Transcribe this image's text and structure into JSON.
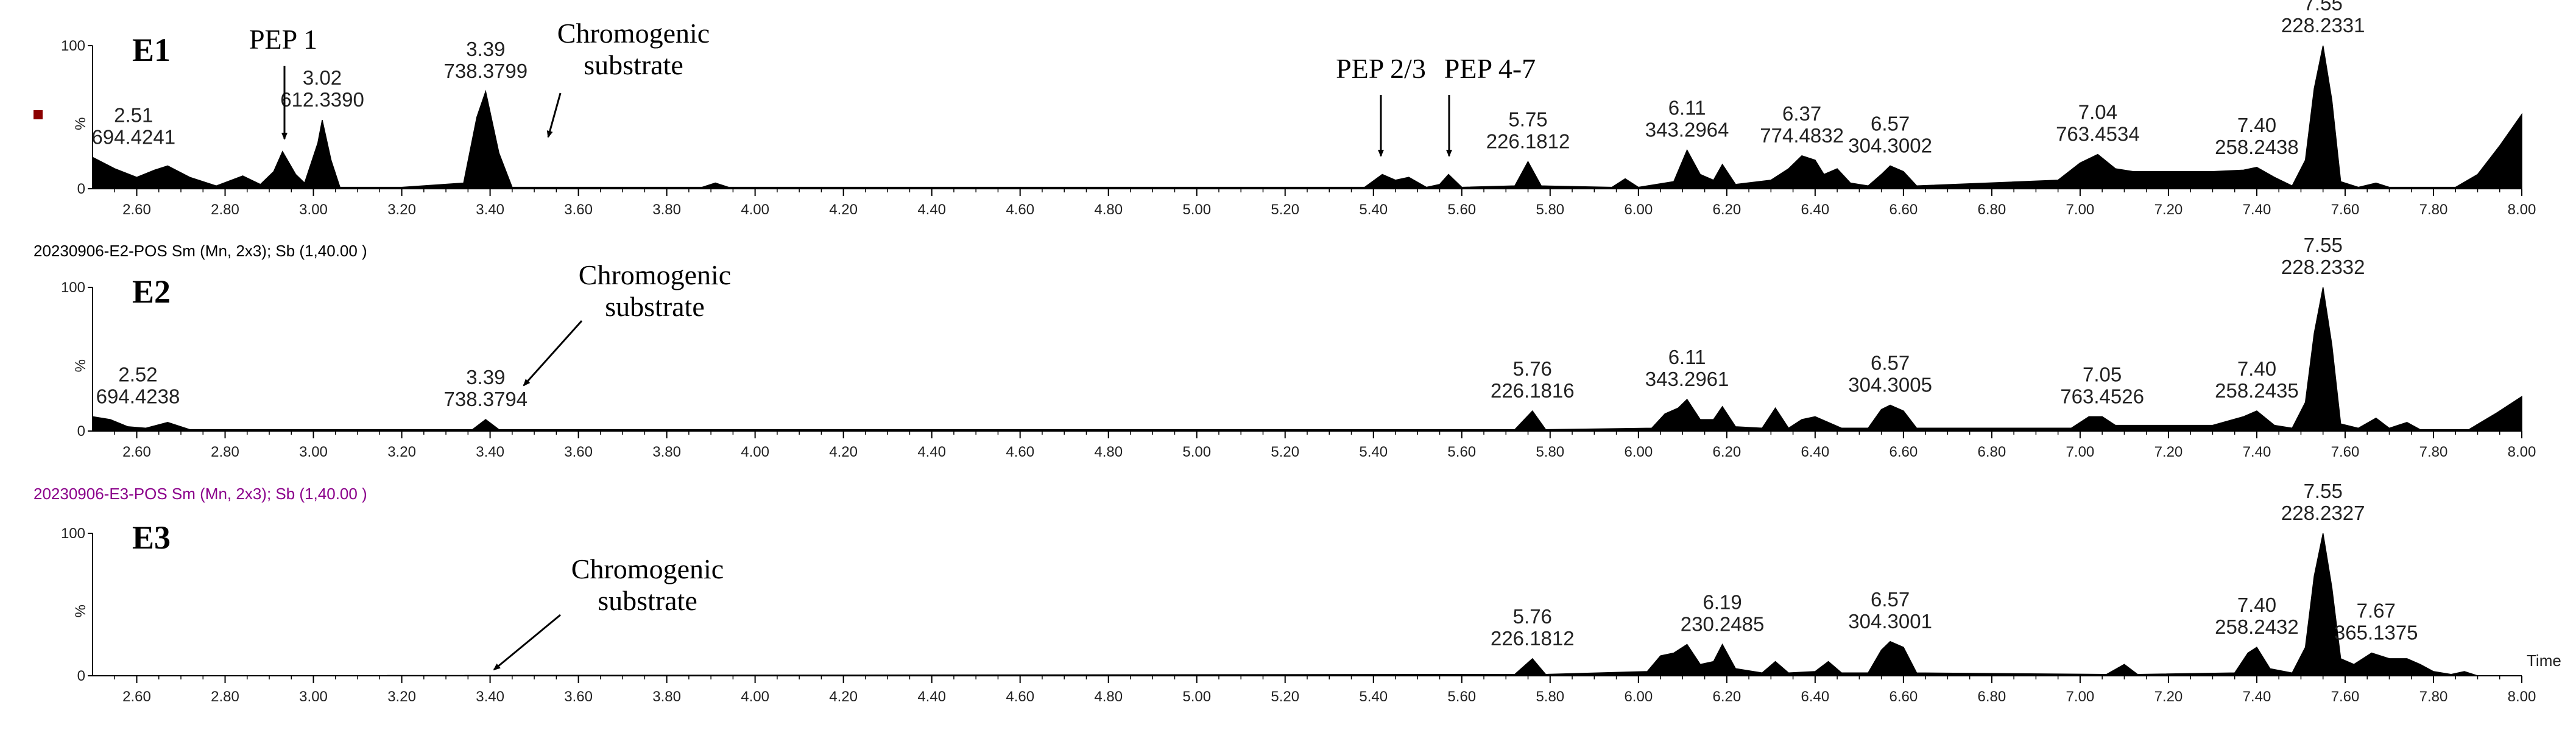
{
  "chart_data": [
    {
      "type": "area",
      "title": "E1",
      "header": "",
      "header_color": "#000000",
      "xlim": [
        2.5,
        8.0
      ],
      "ylim": [
        0,
        100
      ],
      "y_ticks": [
        "100",
        "%",
        "0"
      ],
      "x_ticks": [
        "2.60",
        "2.80",
        "3.00",
        "3.20",
        "3.40",
        "3.60",
        "3.80",
        "4.00",
        "4.20",
        "4.40",
        "4.60",
        "4.80",
        "5.00",
        "5.20",
        "5.40",
        "5.60",
        "5.80",
        "6.00",
        "6.20",
        "6.40",
        "6.60",
        "6.80",
        "7.00",
        "7.20",
        "7.40",
        "7.60",
        "7.80",
        "8.00"
      ],
      "x_axis_label": "",
      "trace": [
        [
          2.5,
          22
        ],
        [
          2.55,
          14
        ],
        [
          2.6,
          8
        ],
        [
          2.64,
          13
        ],
        [
          2.67,
          16
        ],
        [
          2.72,
          8
        ],
        [
          2.78,
          2
        ],
        [
          2.84,
          9
        ],
        [
          2.88,
          3
        ],
        [
          2.91,
          12
        ],
        [
          2.93,
          26
        ],
        [
          2.96,
          10
        ],
        [
          2.98,
          4
        ],
        [
          3.01,
          32
        ],
        [
          3.02,
          48
        ],
        [
          3.04,
          20
        ],
        [
          3.06,
          1
        ],
        [
          3.2,
          1
        ],
        [
          3.34,
          4
        ],
        [
          3.37,
          50
        ],
        [
          3.39,
          68
        ],
        [
          3.42,
          25
        ],
        [
          3.45,
          1
        ],
        [
          3.88,
          1
        ],
        [
          3.91,
          4
        ],
        [
          3.94,
          1
        ],
        [
          5.38,
          1
        ],
        [
          5.42,
          10
        ],
        [
          5.45,
          6
        ],
        [
          5.48,
          8
        ],
        [
          5.52,
          1
        ],
        [
          5.55,
          3
        ],
        [
          5.57,
          10
        ],
        [
          5.6,
          1
        ],
        [
          5.72,
          2
        ],
        [
          5.75,
          19
        ],
        [
          5.78,
          2
        ],
        [
          5.94,
          1
        ],
        [
          5.97,
          7
        ],
        [
          6.0,
          1
        ],
        [
          6.08,
          5
        ],
        [
          6.11,
          27
        ],
        [
          6.14,
          10
        ],
        [
          6.17,
          6
        ],
        [
          6.19,
          17
        ],
        [
          6.22,
          3
        ],
        [
          6.3,
          6
        ],
        [
          6.34,
          14
        ],
        [
          6.37,
          23
        ],
        [
          6.4,
          20
        ],
        [
          6.42,
          10
        ],
        [
          6.45,
          14
        ],
        [
          6.48,
          4
        ],
        [
          6.52,
          2
        ],
        [
          6.55,
          10
        ],
        [
          6.57,
          16
        ],
        [
          6.6,
          12
        ],
        [
          6.63,
          2
        ],
        [
          6.95,
          6
        ],
        [
          7.0,
          18
        ],
        [
          7.04,
          24
        ],
        [
          7.08,
          14
        ],
        [
          7.12,
          12
        ],
        [
          7.2,
          12
        ],
        [
          7.3,
          12
        ],
        [
          7.37,
          13
        ],
        [
          7.4,
          15
        ],
        [
          7.44,
          8
        ],
        [
          7.48,
          2
        ],
        [
          7.51,
          20
        ],
        [
          7.53,
          70
        ],
        [
          7.55,
          100
        ],
        [
          7.57,
          62
        ],
        [
          7.59,
          5
        ],
        [
          7.63,
          1
        ],
        [
          7.67,
          4
        ],
        [
          7.7,
          1
        ],
        [
          7.85,
          1
        ],
        [
          7.9,
          10
        ],
        [
          7.95,
          30
        ],
        [
          8.0,
          52
        ]
      ],
      "peak_labels": [
        {
          "rt": "2.51",
          "mz": "694.4241"
        },
        {
          "rt": "3.02",
          "mz": "612.3390"
        },
        {
          "rt": "3.39",
          "mz": "738.3799"
        },
        {
          "rt": "5.75",
          "mz": "226.1812"
        },
        {
          "rt": "6.11",
          "mz": "343.2964"
        },
        {
          "rt": "6.37",
          "mz": "774.4832"
        },
        {
          "rt": "6.57",
          "mz": "304.3002"
        },
        {
          "rt": "7.04",
          "mz": "763.4534"
        },
        {
          "rt": "7.40",
          "mz": "258.2438"
        },
        {
          "rt": "7.55",
          "mz": "228.2331"
        }
      ],
      "annotations": [
        {
          "lines": [
            "PEP 1"
          ],
          "target_x": 2.93
        },
        {
          "lines": [
            "Chromogenic",
            "substrate"
          ],
          "target_x": 3.42
        },
        {
          "lines": [
            "PEP 2/3"
          ],
          "target_x": 5.42
        },
        {
          "lines": [
            "PEP 4-7"
          ],
          "target_x": 5.57
        }
      ],
      "marker": {
        "color": "#8b0000"
      }
    },
    {
      "type": "area",
      "title": "E2",
      "header": "20230906-E2-POS Sm (Mn, 2x3); Sb (1,40.00 )",
      "header_color": "#000000",
      "xlim": [
        2.5,
        8.0
      ],
      "ylim": [
        0,
        100
      ],
      "y_ticks": [
        "100",
        "%",
        "0"
      ],
      "x_ticks": [
        "2.60",
        "2.80",
        "3.00",
        "3.20",
        "3.40",
        "3.60",
        "3.80",
        "4.00",
        "4.20",
        "4.40",
        "4.60",
        "4.80",
        "5.00",
        "5.20",
        "5.40",
        "5.60",
        "5.80",
        "6.00",
        "6.20",
        "6.40",
        "6.60",
        "6.80",
        "7.00",
        "7.20",
        "7.40",
        "7.60",
        "7.80",
        "8.00"
      ],
      "x_axis_label": "",
      "trace": [
        [
          2.5,
          10
        ],
        [
          2.54,
          8
        ],
        [
          2.58,
          3
        ],
        [
          2.62,
          2
        ],
        [
          2.67,
          6
        ],
        [
          2.72,
          1
        ],
        [
          2.85,
          1
        ],
        [
          3.36,
          1
        ],
        [
          3.39,
          8
        ],
        [
          3.42,
          1
        ],
        [
          5.72,
          1
        ],
        [
          5.76,
          14
        ],
        [
          5.79,
          1
        ],
        [
          6.03,
          2
        ],
        [
          6.06,
          12
        ],
        [
          6.09,
          16
        ],
        [
          6.11,
          22
        ],
        [
          6.14,
          8
        ],
        [
          6.17,
          8
        ],
        [
          6.19,
          17
        ],
        [
          6.22,
          3
        ],
        [
          6.28,
          2
        ],
        [
          6.31,
          16
        ],
        [
          6.34,
          2
        ],
        [
          6.37,
          8
        ],
        [
          6.4,
          10
        ],
        [
          6.43,
          6
        ],
        [
          6.46,
          2
        ],
        [
          6.52,
          2
        ],
        [
          6.55,
          15
        ],
        [
          6.57,
          18
        ],
        [
          6.6,
          14
        ],
        [
          6.63,
          2
        ],
        [
          6.98,
          2
        ],
        [
          7.02,
          10
        ],
        [
          7.05,
          10
        ],
        [
          7.08,
          4
        ],
        [
          7.15,
          4
        ],
        [
          7.3,
          4
        ],
        [
          7.37,
          10
        ],
        [
          7.4,
          14
        ],
        [
          7.44,
          4
        ],
        [
          7.48,
          2
        ],
        [
          7.51,
          20
        ],
        [
          7.53,
          68
        ],
        [
          7.55,
          100
        ],
        [
          7.57,
          60
        ],
        [
          7.59,
          5
        ],
        [
          7.63,
          2
        ],
        [
          7.67,
          9
        ],
        [
          7.7,
          2
        ],
        [
          7.74,
          6
        ],
        [
          7.77,
          1
        ],
        [
          7.88,
          1
        ],
        [
          7.94,
          12
        ],
        [
          8.0,
          24
        ]
      ],
      "peak_labels": [
        {
          "rt": "2.52",
          "mz": "694.4238"
        },
        {
          "rt": "3.39",
          "mz": "738.3794"
        },
        {
          "rt": "5.76",
          "mz": "226.1816"
        },
        {
          "rt": "6.11",
          "mz": "343.2961"
        },
        {
          "rt": "6.57",
          "mz": "304.3005"
        },
        {
          "rt": "7.05",
          "mz": "763.4526"
        },
        {
          "rt": "7.40",
          "mz": "258.2435"
        },
        {
          "rt": "7.55",
          "mz": "228.2332"
        }
      ],
      "annotations": [
        {
          "lines": [
            "Chromogenic",
            "substrate"
          ],
          "target_x": 3.42
        }
      ]
    },
    {
      "type": "area",
      "title": "E3",
      "header": "20230906-E3-POS Sm (Mn, 2x3); Sb (1,40.00 )",
      "header_color": "#8b008b",
      "xlim": [
        2.5,
        8.0
      ],
      "ylim": [
        0,
        100
      ],
      "y_ticks": [
        "100",
        "%",
        "0"
      ],
      "x_ticks": [
        "2.60",
        "2.80",
        "3.00",
        "3.20",
        "3.40",
        "3.60",
        "3.80",
        "4.00",
        "4.20",
        "4.40",
        "4.60",
        "4.80",
        "5.00",
        "5.20",
        "5.40",
        "5.60",
        "5.80",
        "6.00",
        "6.20",
        "6.40",
        "6.60",
        "6.80",
        "7.00",
        "7.20",
        "7.40",
        "7.60",
        "7.80",
        "8.00"
      ],
      "x_axis_label": "Time",
      "trace": [
        [
          2.5,
          0
        ],
        [
          5.72,
          1
        ],
        [
          5.76,
          12
        ],
        [
          5.79,
          1
        ],
        [
          6.02,
          3
        ],
        [
          6.05,
          14
        ],
        [
          6.08,
          16
        ],
        [
          6.11,
          22
        ],
        [
          6.14,
          8
        ],
        [
          6.17,
          10
        ],
        [
          6.19,
          22
        ],
        [
          6.22,
          5
        ],
        [
          6.28,
          2
        ],
        [
          6.31,
          10
        ],
        [
          6.34,
          2
        ],
        [
          6.4,
          3
        ],
        [
          6.43,
          10
        ],
        [
          6.46,
          2
        ],
        [
          6.52,
          2
        ],
        [
          6.55,
          18
        ],
        [
          6.57,
          24
        ],
        [
          6.6,
          20
        ],
        [
          6.63,
          2
        ],
        [
          7.06,
          1
        ],
        [
          7.1,
          8
        ],
        [
          7.13,
          1
        ],
        [
          7.35,
          2
        ],
        [
          7.38,
          16
        ],
        [
          7.4,
          20
        ],
        [
          7.43,
          5
        ],
        [
          7.48,
          2
        ],
        [
          7.51,
          20
        ],
        [
          7.53,
          70
        ],
        [
          7.55,
          100
        ],
        [
          7.57,
          62
        ],
        [
          7.59,
          12
        ],
        [
          7.62,
          8
        ],
        [
          7.66,
          16
        ],
        [
          7.7,
          12
        ],
        [
          7.74,
          12
        ],
        [
          7.77,
          8
        ],
        [
          7.8,
          3
        ],
        [
          7.84,
          1
        ],
        [
          7.87,
          3
        ],
        [
          7.9,
          0
        ],
        [
          8.0,
          0
        ]
      ],
      "peak_labels": [
        {
          "rt": "5.76",
          "mz": "226.1812"
        },
        {
          "rt": "6.19",
          "mz": "230.2485"
        },
        {
          "rt": "6.57",
          "mz": "304.3001"
        },
        {
          "rt": "7.40",
          "mz": "258.2432"
        },
        {
          "rt": "7.55",
          "mz": "228.2327"
        },
        {
          "rt": "7.67",
          "mz": "365.1375"
        }
      ],
      "annotations": [
        {
          "lines": [
            "Chromogenic",
            "substrate"
          ],
          "target_x": 3.39
        }
      ]
    }
  ]
}
